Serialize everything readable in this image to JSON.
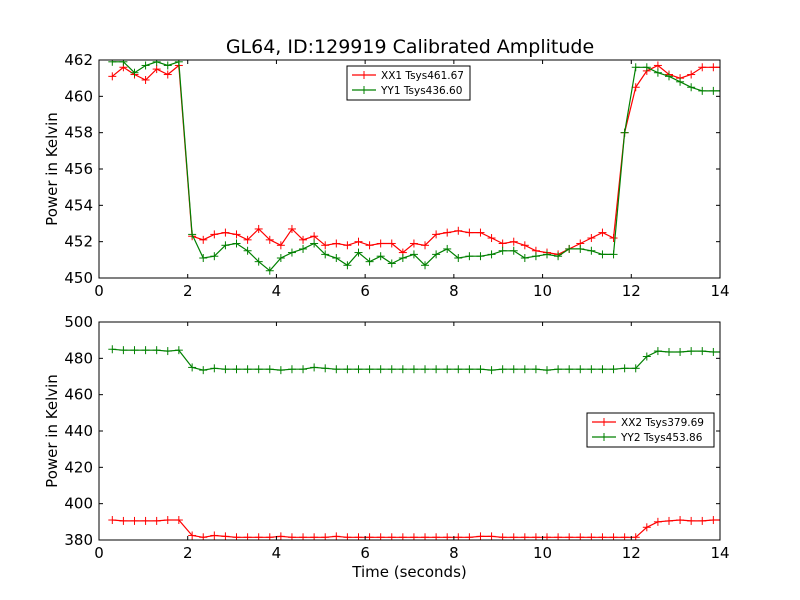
{
  "figure_title": "GL64, ID:129919 Calibrated Amplitude",
  "chart_data": [
    {
      "type": "line",
      "title": "GL64, ID:129919 Calibrated Amplitude",
      "xlabel": "",
      "ylabel": "Power in Kelvin",
      "xlim": [
        0,
        14
      ],
      "ylim": [
        450,
        462
      ],
      "xticks": [
        0,
        2,
        4,
        6,
        8,
        10,
        12,
        14
      ],
      "yticks": [
        450,
        452,
        454,
        456,
        458,
        460,
        462
      ],
      "legend_position": "top-center",
      "grid": false,
      "x": [
        0.3,
        0.55,
        0.8,
        1.05,
        1.3,
        1.55,
        1.8,
        2.1,
        2.35,
        2.6,
        2.85,
        3.1,
        3.35,
        3.6,
        3.85,
        4.1,
        4.35,
        4.6,
        4.85,
        5.1,
        5.35,
        5.6,
        5.85,
        6.1,
        6.35,
        6.6,
        6.85,
        7.1,
        7.35,
        7.6,
        7.85,
        8.1,
        8.35,
        8.6,
        8.85,
        9.1,
        9.35,
        9.6,
        9.85,
        10.1,
        10.35,
        10.6,
        10.85,
        11.1,
        11.35,
        11.6,
        11.85,
        12.1,
        12.35,
        12.6,
        12.85,
        13.1,
        13.35,
        13.6,
        13.85,
        14.0
      ],
      "series": [
        {
          "name": "XX1 Tsys461.67",
          "color": "#ff0000",
          "values": [
            461.1,
            461.6,
            461.2,
            460.9,
            461.5,
            461.2,
            461.7,
            452.3,
            452.1,
            452.4,
            452.5,
            452.4,
            452.1,
            452.7,
            452.1,
            451.8,
            452.7,
            452.1,
            452.3,
            451.8,
            451.9,
            451.8,
            452.0,
            451.8,
            451.9,
            451.9,
            451.4,
            451.9,
            451.8,
            452.4,
            452.5,
            452.6,
            452.5,
            452.5,
            452.2,
            451.9,
            452.0,
            451.8,
            451.5,
            451.4,
            451.3,
            451.6,
            451.9,
            452.2,
            452.5,
            452.2,
            458.0,
            460.5,
            461.4,
            461.7,
            461.2,
            461.0,
            461.2,
            461.6,
            461.6,
            461.6
          ]
        },
        {
          "name": "YY1 Tsys436.60",
          "color": "#008000",
          "values": [
            461.9,
            461.9,
            461.3,
            461.7,
            461.9,
            461.7,
            461.9,
            452.4,
            451.1,
            451.2,
            451.8,
            451.9,
            451.5,
            450.9,
            450.4,
            451.1,
            451.4,
            451.6,
            451.9,
            451.3,
            451.1,
            450.7,
            451.4,
            450.9,
            451.2,
            450.8,
            451.1,
            451.3,
            450.7,
            451.3,
            451.6,
            451.1,
            451.2,
            451.2,
            451.3,
            451.5,
            451.5,
            451.1,
            451.2,
            451.3,
            451.2,
            451.6,
            451.6,
            451.5,
            451.3,
            451.3,
            458.0,
            461.6,
            461.6,
            461.3,
            461.1,
            460.8,
            460.5,
            460.3,
            460.3,
            460.3
          ]
        }
      ]
    },
    {
      "type": "line",
      "title": "",
      "xlabel": "Time (seconds)",
      "ylabel": "Power in Kelvin",
      "xlim": [
        0,
        14
      ],
      "ylim": [
        380,
        500
      ],
      "xticks": [
        0,
        2,
        4,
        6,
        8,
        10,
        12,
        14
      ],
      "yticks": [
        380,
        400,
        420,
        440,
        460,
        480,
        500
      ],
      "legend_position": "center-right",
      "grid": false,
      "x": [
        0.3,
        0.55,
        0.8,
        1.05,
        1.3,
        1.55,
        1.8,
        2.1,
        2.35,
        2.6,
        2.85,
        3.1,
        3.35,
        3.6,
        3.85,
        4.1,
        4.35,
        4.6,
        4.85,
        5.1,
        5.35,
        5.6,
        5.85,
        6.1,
        6.35,
        6.6,
        6.85,
        7.1,
        7.35,
        7.6,
        7.85,
        8.1,
        8.35,
        8.6,
        8.85,
        9.1,
        9.35,
        9.6,
        9.85,
        10.1,
        10.35,
        10.6,
        10.85,
        11.1,
        11.35,
        11.6,
        11.85,
        12.1,
        12.35,
        12.6,
        12.85,
        13.1,
        13.35,
        13.6,
        13.85,
        14.0
      ],
      "series": [
        {
          "name": "XX2 Tsys379.69",
          "color": "#ff0000",
          "values": [
            391,
            390.5,
            390.5,
            390.5,
            390.5,
            391,
            391,
            382.5,
            381.5,
            382.5,
            382,
            381.5,
            381.5,
            381.5,
            381.5,
            382,
            381.5,
            381.5,
            381.5,
            381.5,
            382,
            381.5,
            381.5,
            381.5,
            381.5,
            381.5,
            381.5,
            381.5,
            381.5,
            381.5,
            381.5,
            381.5,
            381.5,
            382,
            382,
            381.5,
            381.5,
            381.5,
            381.5,
            381.5,
            381.5,
            381.5,
            381.5,
            381.5,
            381.5,
            381.5,
            381.5,
            381.5,
            387,
            390,
            390.5,
            391,
            390.5,
            390.5,
            391,
            391
          ]
        },
        {
          "name": "YY2 Tsys453.86",
          "color": "#008000",
          "values": [
            485,
            484.5,
            484.5,
            484.5,
            484.5,
            484,
            484.5,
            475,
            473.5,
            474.5,
            474,
            474,
            474,
            474,
            474,
            473.5,
            474,
            474,
            475,
            474.5,
            474,
            474,
            474,
            474,
            474,
            474,
            474,
            474,
            474,
            474,
            474,
            474,
            474,
            474,
            473.5,
            474,
            474,
            474,
            474,
            473.5,
            474,
            474,
            474,
            474,
            474,
            474,
            474.5,
            474.5,
            481,
            484,
            483.5,
            483.5,
            484,
            484,
            483.5,
            483.5
          ]
        }
      ]
    }
  ]
}
